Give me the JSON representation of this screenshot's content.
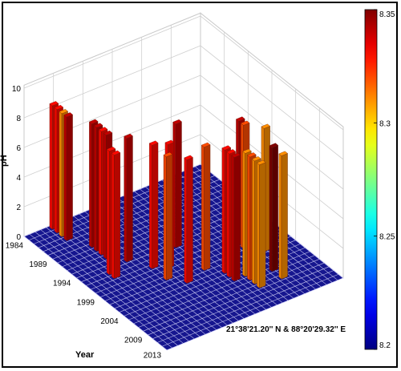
{
  "chart_data": {
    "type": "bar3d",
    "zlabel": "pH",
    "ylabel": "Year",
    "xlabel": "",
    "zlim": [
      0,
      10
    ],
    "z_ticks": [
      "0",
      "2",
      "4",
      "6",
      "8",
      "10"
    ],
    "year_ticks": [
      "1984",
      "1989",
      "1994",
      "1999",
      "2004",
      "2009",
      "2013"
    ],
    "annotation": "21°38'21.20'' N & 88°20'29.32'' E",
    "colorbar": {
      "range": [
        8.2,
        8.35
      ],
      "ticks": [
        "8.35",
        "8.3",
        "8.25",
        "8.2"
      ],
      "colormap": "jet"
    },
    "bars": [
      {
        "year": 1984,
        "pos": 2,
        "ph": 8.33
      },
      {
        "year": 1985,
        "pos": 2,
        "ph": 8.33
      },
      {
        "year": 1986,
        "pos": 2,
        "ph": 8.31
      },
      {
        "year": 1987,
        "pos": 2,
        "ph": 8.34
      },
      {
        "year": 1990,
        "pos": 3,
        "ph": 8.34
      },
      {
        "year": 1991,
        "pos": 3,
        "ph": 8.34
      },
      {
        "year": 1992,
        "pos": 3,
        "ph": 8.33
      },
      {
        "year": 1993,
        "pos": 3,
        "ph": 8.34
      },
      {
        "year": 1996,
        "pos": 2,
        "ph": 8.33
      },
      {
        "year": 1997,
        "pos": 2,
        "ph": 8.33
      },
      {
        "year": 1995,
        "pos": 4,
        "ph": 8.34
      },
      {
        "year": 1998,
        "pos": 5,
        "ph": 8.33
      },
      {
        "year": 2001,
        "pos": 5,
        "ph": 8.32
      },
      {
        "year": 1999,
        "pos": 6,
        "ph": 8.33
      },
      {
        "year": 1996,
        "pos": 8,
        "ph": 8.34
      },
      {
        "year": 2003,
        "pos": 6,
        "ph": 8.33
      },
      {
        "year": 2002,
        "pos": 8,
        "ph": 8.32
      },
      {
        "year": 2004,
        "pos": 9,
        "ph": 8.33
      },
      {
        "year": 2005,
        "pos": 9,
        "ph": 8.33
      },
      {
        "year": 2006,
        "pos": 9,
        "ph": 8.34
      },
      {
        "year": 2006,
        "pos": 10,
        "ph": 8.31
      },
      {
        "year": 2007,
        "pos": 10,
        "ph": 8.32
      },
      {
        "year": 2008,
        "pos": 10,
        "ph": 8.31
      },
      {
        "year": 2009,
        "pos": 10,
        "ph": 8.31
      },
      {
        "year": 2000,
        "pos": 12,
        "ph": 8.34
      },
      {
        "year": 2001,
        "pos": 12,
        "ph": 8.32
      },
      {
        "year": 2003,
        "pos": 13,
        "ph": 8.31
      },
      {
        "year": 2007,
        "pos": 12,
        "ph": 8.35
      },
      {
        "year": 2009,
        "pos": 12,
        "ph": 8.31
      }
    ]
  }
}
